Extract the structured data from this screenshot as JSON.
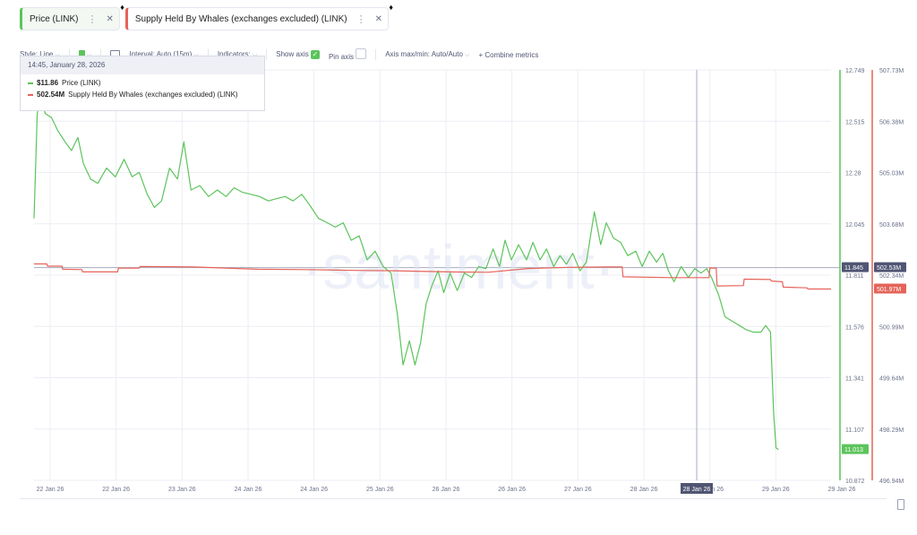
{
  "tabs": [
    {
      "label": "Price (LINK)",
      "color": "#5cc45c"
    },
    {
      "label": "Supply Held By Whales (exchanges excluded) (LINK)",
      "color": "#e46359"
    }
  ],
  "toolbar": {
    "style": "Style: Line",
    "interval": "Interval: Auto (15m)",
    "indicators": "Indicators:",
    "show_axis": "Show axis",
    "pin_axis": "Pin axis",
    "axis_maxmin": "Axis max/min: Auto/Auto",
    "combine": "Combine metrics"
  },
  "tooltip": {
    "date": "14:45, January 28, 2026",
    "price_value": "$11.86",
    "price_name": "Price (LINK)",
    "supply_value": "502.54M",
    "supply_name": "Supply Held By Whales (exchanges excluded) (LINK)"
  },
  "watermark": "·santiment·",
  "chart_data": {
    "type": "line",
    "x_ticks": [
      "22 Jan 26",
      "22 Jan 26",
      "23 Jan 26",
      "24 Jan 26",
      "24 Jan 26",
      "25 Jan 26",
      "26 Jan 26",
      "26 Jan 26",
      "27 Jan 26",
      "28 Jan 26",
      "28 Jan 26",
      "29 Jan 26",
      "29 Jan 26"
    ],
    "highlight_x_label": "28 Jan 26",
    "price_axis": {
      "ticks": [
        "12.749",
        "12.515",
        "12.28",
        "12.045",
        "11.811",
        "11.576",
        "11.341",
        "11.107",
        "10.872"
      ],
      "ylim": [
        10.872,
        12.749
      ],
      "color": "#5cc45c"
    },
    "supply_axis": {
      "ticks": [
        "507.73M",
        "506.38M",
        "505.03M",
        "503.68M",
        "502.34M",
        "500.99M",
        "499.64M",
        "498.29M",
        "496.94M"
      ],
      "ylim": [
        496.94,
        507.73
      ],
      "color": "#e46359"
    },
    "badges": {
      "price_current": "11.845",
      "supply_current": "502.53M",
      "supply_last": "501.97M",
      "price_last": "11.013"
    },
    "series": [
      {
        "name": "Price (LINK)",
        "axis": "price",
        "color": "#5cc45c",
        "points": [
          [
            0,
            12.07
          ],
          [
            0.4,
            12.55
          ],
          [
            0.8,
            12.62
          ],
          [
            1.4,
            12.55
          ],
          [
            2.2,
            12.53
          ],
          [
            3,
            12.47
          ],
          [
            3.9,
            12.42
          ],
          [
            4.7,
            12.38
          ],
          [
            5.5,
            12.44
          ],
          [
            6.2,
            12.32
          ],
          [
            7.1,
            12.25
          ],
          [
            8,
            12.23
          ],
          [
            9.1,
            12.3
          ],
          [
            10.2,
            12.26
          ],
          [
            11.3,
            12.34
          ],
          [
            12.3,
            12.26
          ],
          [
            13.2,
            12.28
          ],
          [
            14.2,
            12.18
          ],
          [
            15.1,
            12.12
          ],
          [
            16,
            12.15
          ],
          [
            17,
            12.3
          ],
          [
            18,
            12.25
          ],
          [
            18.8,
            12.42
          ],
          [
            19.7,
            12.2
          ],
          [
            20.8,
            12.22
          ],
          [
            21.9,
            12.17
          ],
          [
            23,
            12.2
          ],
          [
            24.1,
            12.17
          ],
          [
            25.1,
            12.21
          ],
          [
            26.1,
            12.19
          ],
          [
            27.2,
            12.18
          ],
          [
            28.3,
            12.17
          ],
          [
            29.4,
            12.15
          ],
          [
            30.4,
            12.16
          ],
          [
            31.5,
            12.17
          ],
          [
            32.5,
            12.15
          ],
          [
            33.6,
            12.18
          ],
          [
            34.6,
            12.13
          ],
          [
            35.7,
            12.07
          ],
          [
            36.8,
            12.05
          ],
          [
            37.8,
            12.03
          ],
          [
            38.8,
            12.05
          ],
          [
            39.8,
            11.97
          ],
          [
            40.8,
            11.99
          ],
          [
            41.8,
            11.88
          ],
          [
            42.8,
            11.92
          ],
          [
            43.8,
            11.85
          ],
          [
            44.8,
            11.82
          ],
          [
            45.6,
            11.63
          ],
          [
            46.3,
            11.4
          ],
          [
            47.1,
            11.51
          ],
          [
            47.8,
            11.4
          ],
          [
            48.5,
            11.5
          ],
          [
            49.2,
            11.68
          ],
          [
            49.9,
            11.76
          ],
          [
            50.7,
            11.83
          ],
          [
            51.4,
            11.73
          ],
          [
            52.2,
            11.82
          ],
          [
            53.1,
            11.74
          ],
          [
            54,
            11.82
          ],
          [
            54.9,
            11.8
          ],
          [
            55.8,
            11.85
          ],
          [
            56.7,
            11.84
          ],
          [
            57.6,
            11.93
          ],
          [
            58.4,
            11.85
          ],
          [
            59.1,
            11.97
          ],
          [
            59.9,
            11.88
          ],
          [
            60.8,
            11.95
          ],
          [
            61.8,
            11.88
          ],
          [
            62.6,
            11.96
          ],
          [
            63.5,
            11.88
          ],
          [
            64.3,
            11.93
          ],
          [
            65.2,
            11.85
          ],
          [
            66,
            11.9
          ],
          [
            66.8,
            11.86
          ],
          [
            67.6,
            11.91
          ],
          [
            68.5,
            11.83
          ],
          [
            69.3,
            11.87
          ],
          [
            70.3,
            12.1
          ],
          [
            71.1,
            11.95
          ],
          [
            71.8,
            12.05
          ],
          [
            72.7,
            11.98
          ],
          [
            73.6,
            11.96
          ],
          [
            74.5,
            11.9
          ],
          [
            75.5,
            11.92
          ],
          [
            76.3,
            11.85
          ],
          [
            77.2,
            11.92
          ],
          [
            78.1,
            11.87
          ],
          [
            78.9,
            11.91
          ],
          [
            79.6,
            11.83
          ],
          [
            80.3,
            11.78
          ],
          [
            81.2,
            11.85
          ],
          [
            82.1,
            11.8
          ],
          [
            82.9,
            11.84
          ],
          [
            83.7,
            11.82
          ],
          [
            84.4,
            11.84
          ],
          [
            85,
            11.8
          ],
          [
            85.9,
            11.72
          ],
          [
            86.7,
            11.62
          ],
          [
            87.6,
            11.6
          ],
          [
            88.5,
            11.58
          ],
          [
            89.4,
            11.56
          ],
          [
            90.2,
            11.55
          ],
          [
            91.2,
            11.55
          ],
          [
            91.8,
            11.58
          ],
          [
            92.4,
            11.55
          ],
          [
            92.8,
            11.18
          ],
          [
            93.1,
            11.02
          ],
          [
            93.4,
            11.013
          ]
        ]
      },
      {
        "name": "Supply Held By Whales (exchanges excluded) (LINK)",
        "axis": "supply",
        "color": "#e46359",
        "points": [
          [
            0,
            502.63
          ],
          [
            1.6,
            502.63
          ],
          [
            1.7,
            502.57
          ],
          [
            3.5,
            502.57
          ],
          [
            3.6,
            502.49
          ],
          [
            6,
            502.48
          ],
          [
            6.1,
            502.42
          ],
          [
            10.5,
            502.42
          ],
          [
            10.6,
            502.52
          ],
          [
            13.2,
            502.52
          ],
          [
            13.3,
            502.56
          ],
          [
            20,
            502.55
          ],
          [
            28,
            502.49
          ],
          [
            34,
            502.48
          ],
          [
            40,
            502.46
          ],
          [
            45,
            502.45
          ],
          [
            52,
            502.42
          ],
          [
            57,
            502.41
          ],
          [
            62,
            502.51
          ],
          [
            67,
            502.54
          ],
          [
            72,
            502.55
          ],
          [
            73.8,
            502.55
          ],
          [
            73.9,
            502.29
          ],
          [
            80,
            502.27
          ],
          [
            84.7,
            502.27
          ],
          [
            84.8,
            502.52
          ],
          [
            85.6,
            502.52
          ],
          [
            85.7,
            502.05
          ],
          [
            89,
            502.06
          ],
          [
            89.1,
            502.23
          ],
          [
            92.4,
            502.22
          ],
          [
            92.5,
            502.18
          ],
          [
            93.9,
            502.16
          ],
          [
            94,
            502.02
          ],
          [
            97,
            502.0
          ],
          [
            97.1,
            501.97
          ],
          [
            100,
            501.97
          ]
        ]
      }
    ],
    "x_range": [
      0,
      100
    ]
  }
}
